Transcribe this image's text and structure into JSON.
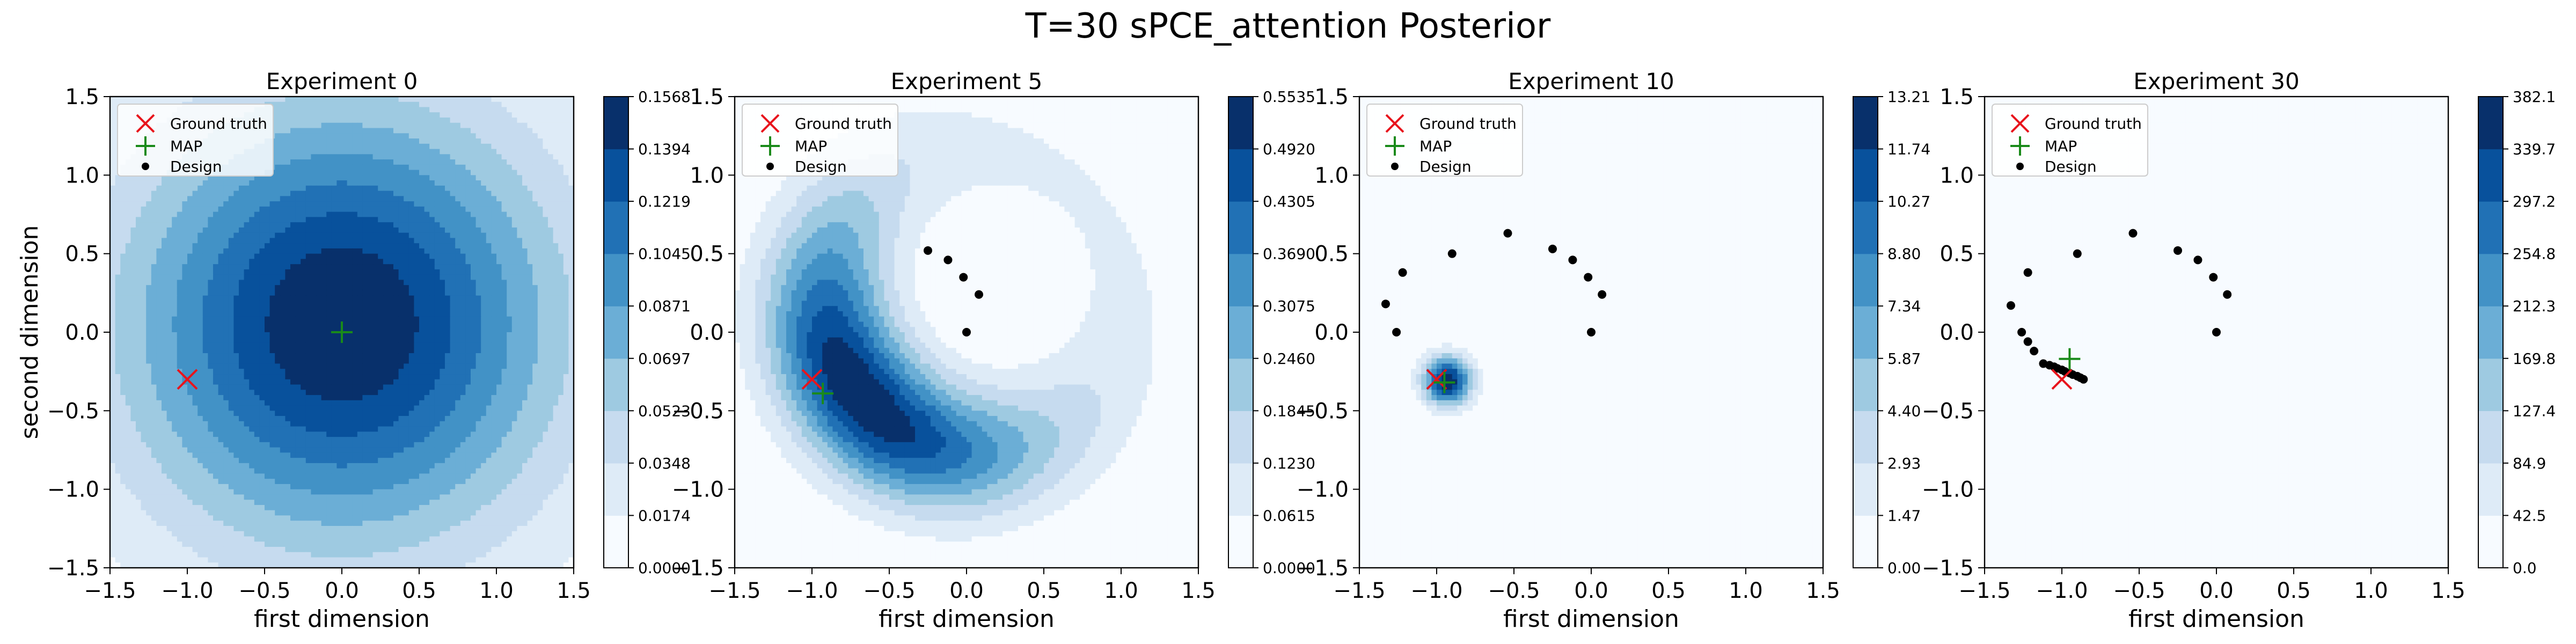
{
  "figure": {
    "title": "T=30 sPCE_attention Posterior"
  },
  "colors": {
    "ground_truth": "#e8141c",
    "map": "#1a8a1a",
    "design": "#000000",
    "colormap": [
      "#f7fbff",
      "#deebf7",
      "#c6dbef",
      "#9ecae1",
      "#6baed6",
      "#4292c6",
      "#2171b5",
      "#08519c",
      "#08306b"
    ]
  },
  "legend_labels": [
    "Ground truth",
    "MAP",
    "Design"
  ],
  "chart_data": [
    {
      "type": "contour",
      "title": "Experiment 0",
      "xlabel": "first dimension",
      "ylabel": "second dimension",
      "xlim": [
        -1.5,
        1.5
      ],
      "ylim": [
        -1.5,
        1.5
      ],
      "xticks": [
        "−1.5",
        "−1.0",
        "−0.5",
        "0.0",
        "0.5",
        "1.0",
        "1.5"
      ],
      "yticks": [
        "−1.5",
        "−1.0",
        "−0.5",
        "0.0",
        "0.5",
        "1.0",
        "1.5"
      ],
      "legend_position": "upper-left",
      "ground_truth": [
        -1.0,
        -0.3
      ],
      "map": [
        0.0,
        0.0
      ],
      "designs": [],
      "colorbar_ticks": [
        "0.0000",
        "0.0174",
        "0.0348",
        "0.0523",
        "0.0697",
        "0.0871",
        "0.1045",
        "0.1219",
        "0.1394",
        "0.1568"
      ],
      "density": {
        "kind": "gaussian",
        "center": [
          0.0,
          0.05
        ],
        "sigma": 1.0
      }
    },
    {
      "type": "contour",
      "title": "Experiment 5",
      "xlabel": "first dimension",
      "ylabel": "",
      "xlim": [
        -1.5,
        1.5
      ],
      "ylim": [
        -1.5,
        1.5
      ],
      "xticks": [
        "−1.5",
        "−1.0",
        "−0.5",
        "0.0",
        "0.5",
        "1.0",
        "1.5"
      ],
      "yticks": [
        "−1.5",
        "−1.0",
        "−0.5",
        "0.0",
        "0.5",
        "1.0",
        "1.5"
      ],
      "legend_position": "upper-left",
      "ground_truth": [
        -1.0,
        -0.3
      ],
      "map": [
        -0.93,
        -0.39
      ],
      "designs": [
        [
          -0.25,
          0.52
        ],
        [
          -0.12,
          0.46
        ],
        [
          -0.02,
          0.35
        ],
        [
          0.08,
          0.24
        ],
        [
          0.0,
          0.0
        ]
      ],
      "colorbar_ticks": [
        "0.0000",
        "0.0615",
        "0.1230",
        "0.1845",
        "0.2460",
        "0.3075",
        "0.3690",
        "0.4305",
        "0.4920",
        "0.5535"
      ],
      "density": {
        "kind": "ring",
        "center": [
          0.05,
          0.2
        ],
        "radius": 0.95,
        "ring_sigma": 0.3,
        "peak_angle_deg": 220,
        "angle_sigma_deg": 50,
        "floor": 0.12
      }
    },
    {
      "type": "contour",
      "title": "Experiment 10",
      "xlabel": "first dimension",
      "ylabel": "",
      "xlim": [
        -1.5,
        1.5
      ],
      "ylim": [
        -1.5,
        1.5
      ],
      "xticks": [
        "−1.5",
        "−1.0",
        "−0.5",
        "0.0",
        "0.5",
        "1.0",
        "1.5"
      ],
      "yticks": [
        "−1.5",
        "−1.0",
        "−0.5",
        "0.0",
        "0.5",
        "1.0",
        "1.5"
      ],
      "legend_position": "upper-left",
      "ground_truth": [
        -1.0,
        -0.3
      ],
      "map": [
        -0.95,
        -0.32
      ],
      "designs": [
        [
          -1.33,
          0.18
        ],
        [
          -1.26,
          0.0
        ],
        [
          -1.22,
          0.38
        ],
        [
          -0.9,
          0.5
        ],
        [
          -0.54,
          0.63
        ],
        [
          -0.25,
          0.53
        ],
        [
          -0.12,
          0.46
        ],
        [
          -0.02,
          0.35
        ],
        [
          0.07,
          0.24
        ],
        [
          0.0,
          0.0
        ]
      ],
      "colorbar_ticks": [
        "0.00",
        "1.47",
        "2.93",
        "4.40",
        "5.87",
        "7.34",
        "8.80",
        "10.27",
        "11.74",
        "13.21"
      ],
      "density": {
        "kind": "gaussian",
        "center": [
          -0.93,
          -0.31
        ],
        "sigma": 0.11
      }
    },
    {
      "type": "contour",
      "title": "Experiment 30",
      "xlabel": "first dimension",
      "ylabel": "",
      "xlim": [
        -1.5,
        1.5
      ],
      "ylim": [
        -1.5,
        1.5
      ],
      "xticks": [
        "−1.5",
        "−1.0",
        "−0.5",
        "0.0",
        "0.5",
        "1.0",
        "1.5"
      ],
      "yticks": [
        "−1.5",
        "−1.0",
        "−0.5",
        "0.0",
        "0.5",
        "1.0",
        "1.5"
      ],
      "legend_position": "upper-left",
      "ground_truth": [
        -1.0,
        -0.3
      ],
      "map": [
        -0.95,
        -0.17
      ],
      "designs": [
        [
          -1.33,
          0.17
        ],
        [
          -1.26,
          0.0
        ],
        [
          -1.22,
          0.38
        ],
        [
          -0.9,
          0.5
        ],
        [
          -0.54,
          0.63
        ],
        [
          -0.25,
          0.52
        ],
        [
          -0.12,
          0.46
        ],
        [
          -0.02,
          0.35
        ],
        [
          0.07,
          0.24
        ],
        [
          0.0,
          0.0
        ],
        [
          -1.22,
          -0.06
        ],
        [
          -1.18,
          -0.12
        ],
        [
          -1.12,
          -0.2
        ],
        [
          -1.08,
          -0.21
        ],
        [
          -1.05,
          -0.22
        ],
        [
          -1.03,
          -0.23
        ],
        [
          -1.0,
          -0.24
        ],
        [
          -0.98,
          -0.25
        ],
        [
          -0.95,
          -0.26
        ],
        [
          -0.93,
          -0.27
        ],
        [
          -0.9,
          -0.28
        ],
        [
          -0.88,
          -0.29
        ],
        [
          -0.86,
          -0.3
        ]
      ],
      "colorbar_ticks": [
        "0.0",
        "42.5",
        "84.9",
        "127.4",
        "169.8",
        "212.3",
        "254.8",
        "297.2",
        "339.7",
        "382.1"
      ],
      "density": {
        "kind": "uniform",
        "level": 0.09
      }
    }
  ]
}
